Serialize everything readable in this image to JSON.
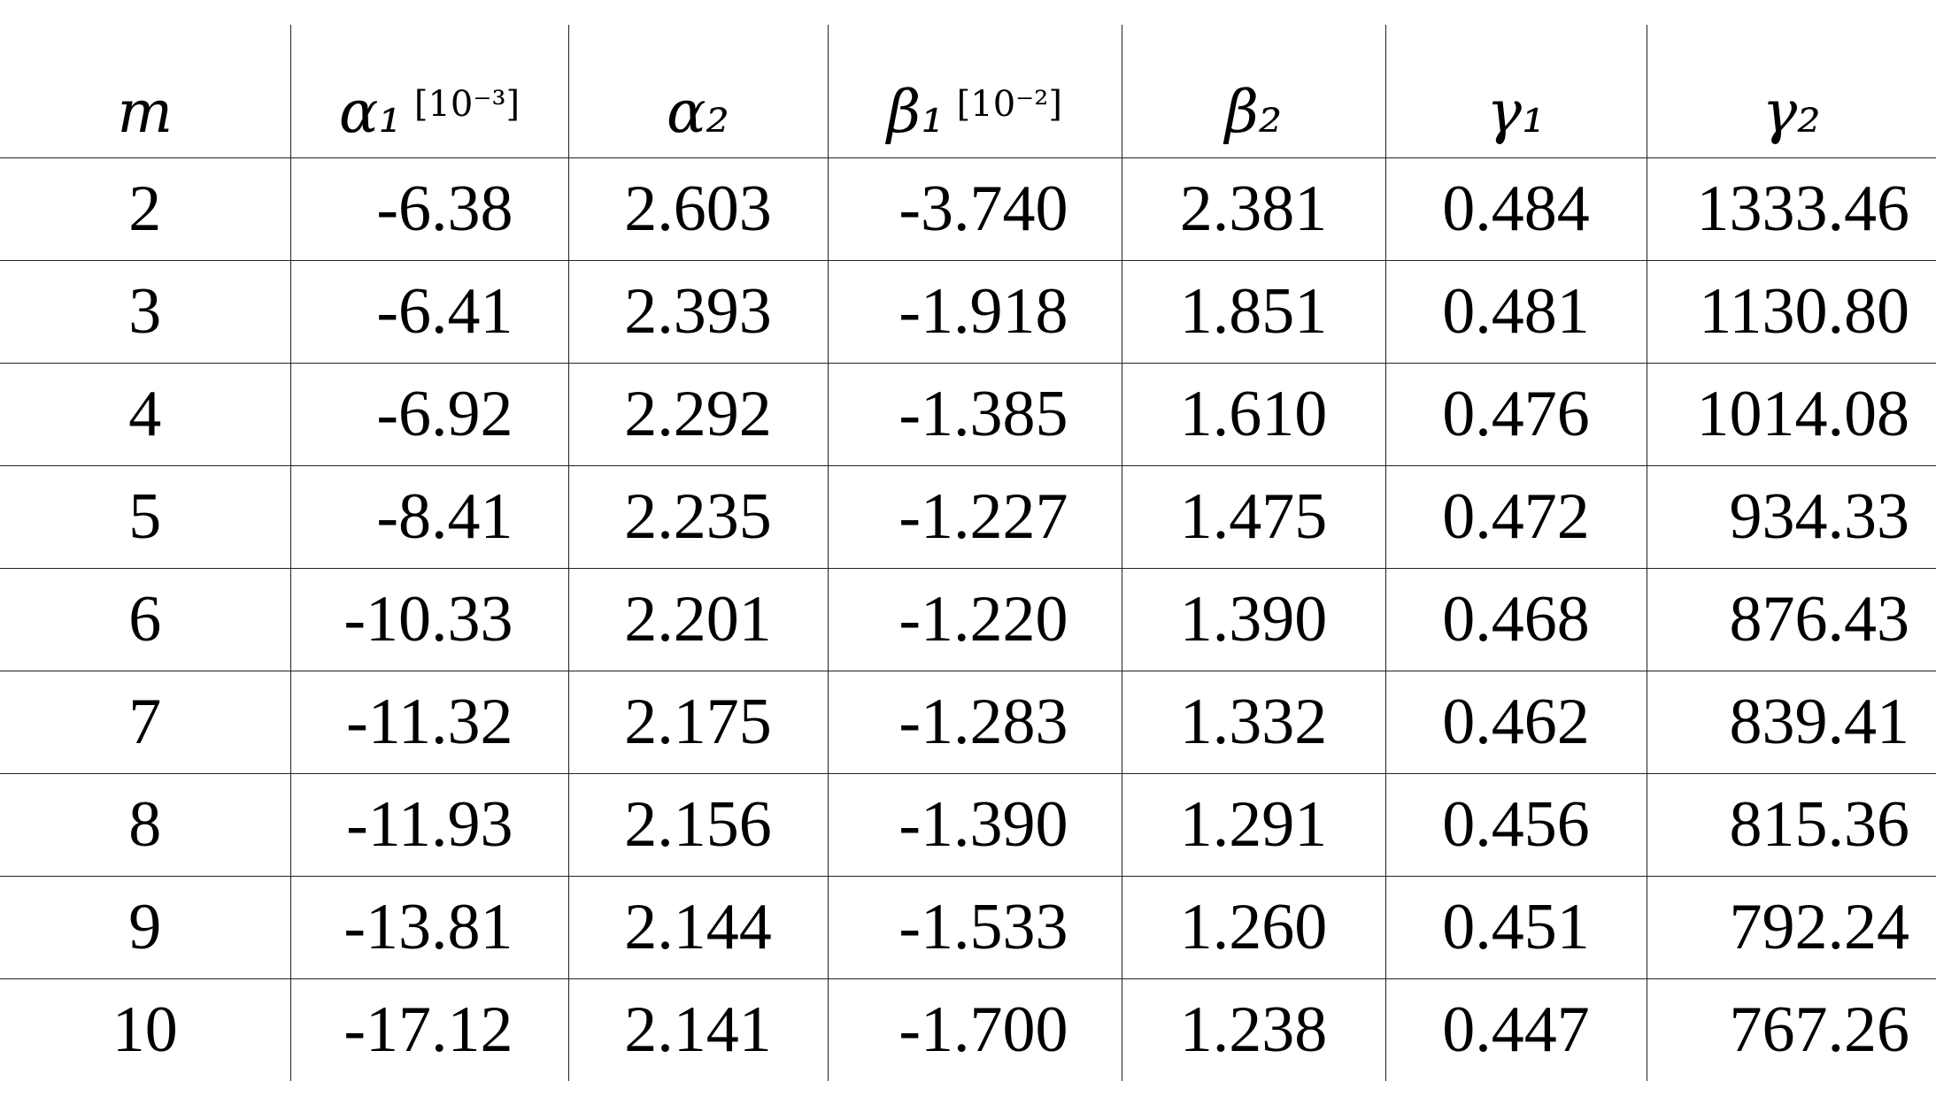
{
  "table": {
    "header": [
      {
        "symbol": "m"
      },
      {
        "symbol": "α₁",
        "unit": "[10⁻³]"
      },
      {
        "symbol": "α₂"
      },
      {
        "symbol": "β₁",
        "unit": "[10⁻²]"
      },
      {
        "symbol": "β₂"
      },
      {
        "symbol": "γ₁"
      },
      {
        "symbol": "γ₂"
      }
    ],
    "rows": [
      [
        "2",
        "-6.38",
        "2.603",
        "-3.740",
        "2.381",
        "0.484",
        "1333.46"
      ],
      [
        "3",
        "-6.41",
        "2.393",
        "-1.918",
        "1.851",
        "0.481",
        "1130.80"
      ],
      [
        "4",
        "-6.92",
        "2.292",
        "-1.385",
        "1.610",
        "0.476",
        "1014.08"
      ],
      [
        "5",
        "-8.41",
        "2.235",
        "-1.227",
        "1.475",
        "0.472",
        "934.33"
      ],
      [
        "6",
        "-10.33",
        "2.201",
        "-1.220",
        "1.390",
        "0.468",
        "876.43"
      ],
      [
        "7",
        "-11.32",
        "2.175",
        "-1.283",
        "1.332",
        "0.462",
        "839.41"
      ],
      [
        "8",
        "-11.93",
        "2.156",
        "-1.390",
        "1.291",
        "0.456",
        "815.36"
      ],
      [
        "9",
        "-13.81",
        "2.144",
        "-1.533",
        "1.260",
        "0.451",
        "792.24"
      ],
      [
        "10",
        "-17.12",
        "2.141",
        "-1.700",
        "1.238",
        "0.447",
        "767.26"
      ]
    ]
  }
}
